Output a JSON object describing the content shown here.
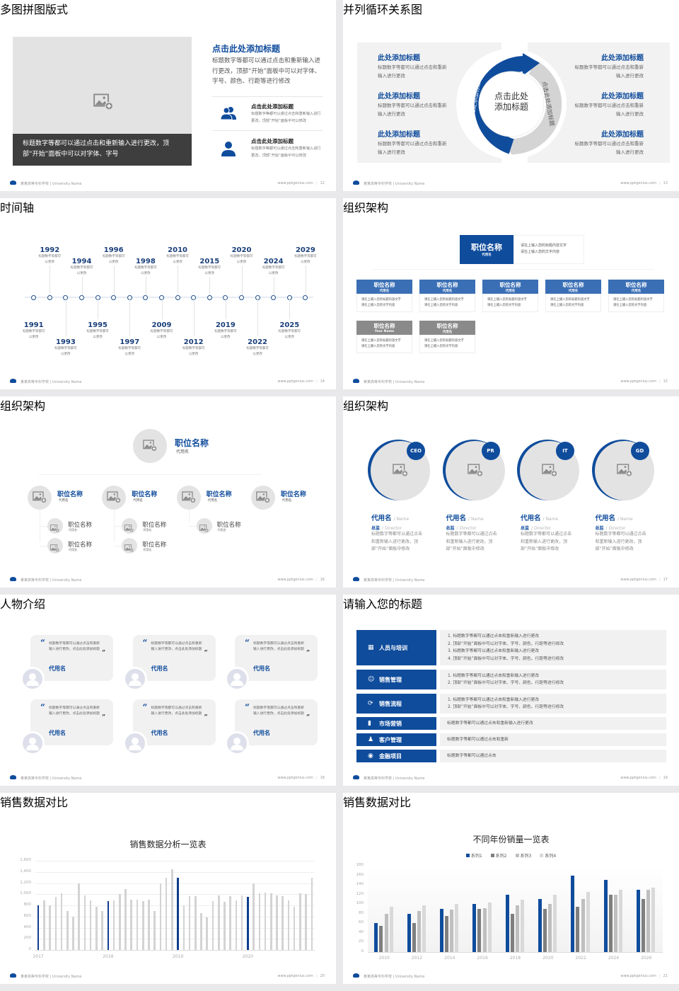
{
  "footer": {
    "school": "某某高等专科学校 | University Name",
    "url": "www.pptgenius.com"
  },
  "colors": {
    "brand_blue": "#0f4c9c",
    "gray": "#d0d0d0",
    "dark_caption": "#3e3e3e"
  },
  "slide12": {
    "title": "多图拼图版式",
    "page": "12",
    "photo_caption": "标题数字等都可以通过点击和重新输入进行更改，顶部“开始”面板中可以对字体、字号",
    "heading": "点击此处添加标题",
    "body": "标题数字等都可以通过点击和重新输入进行更改，顶部“开始”面板中可以对字体、字号、颜色、行距等进行修改",
    "items": [
      {
        "icon": "users-icon",
        "title": "点击此处添加标题",
        "text": "标题数字等都可以通过点击和重新输入进行更改，顶部“开始”面板中可以修改"
      },
      {
        "icon": "user-icon",
        "title": "点击此处添加标题",
        "text": "标题数字等都可以通过点击和重新输入进行更改，顶部“开始”面板中可以修改"
      }
    ]
  },
  "slide13": {
    "title": "并列循环关系图",
    "page": "13",
    "center_lines": [
      "点击此处",
      "添加标题"
    ],
    "arc_left": "点击此处添加标题",
    "arc_right": "点击此处添加标题",
    "items_left": [
      {
        "title": "此处添加标题",
        "text": "标题数字等都可以通过点击和重新输入进行更改"
      },
      {
        "title": "此处添加标题",
        "text": "标题数字等都可以通过点击和重新输入进行更改"
      },
      {
        "title": "此处添加标题",
        "text": "标题数字等都可以通过点击和重新输入进行更改"
      }
    ],
    "items_right": [
      {
        "title": "此处添加标题",
        "text": "标题数字等都可以通过点击和重新输入进行更改"
      },
      {
        "title": "此处添加标题",
        "text": "标题数字等都可以通过点击和重新输入进行更改"
      },
      {
        "title": "此处添加标题",
        "text": "标题数字等都可以通过点击和重新输入进行更改"
      }
    ]
  },
  "slide14": {
    "title": "时间轴",
    "page": "14",
    "events": [
      {
        "year": "1991",
        "text": "标题数字等都可以更改"
      },
      {
        "year": "1992",
        "text": "标题数字等都可以更改"
      },
      {
        "year": "1993",
        "text": "标题数字等都可以更改"
      },
      {
        "year": "1994",
        "text": "标题数字等都可以更改"
      },
      {
        "year": "1995",
        "text": "标题数字等都可以更改"
      },
      {
        "year": "1996",
        "text": "标题数字等都可以更改"
      },
      {
        "year": "1997",
        "text": "标题数字等都可以更改"
      },
      {
        "year": "1998",
        "text": "标题数字等都可以更改"
      },
      {
        "year": "2009",
        "text": "标题数字等都可以更改"
      },
      {
        "year": "2010",
        "text": "标题数字等都可以更改"
      },
      {
        "year": "2012",
        "text": "标题数字等都可以更改"
      },
      {
        "year": "2015",
        "text": "标题数字等都可以更改"
      },
      {
        "year": "2019",
        "text": "标题数字等都可以更改"
      },
      {
        "year": "2020",
        "text": "标题数字等都可以更改"
      },
      {
        "year": "2022",
        "text": "标题数字等都可以更改"
      },
      {
        "year": "2024",
        "text": "标题数字等都可以更改"
      },
      {
        "year": "2025",
        "text": "标题数字等都可以更改"
      },
      {
        "year": "2029",
        "text": "标题数字等都可以更改"
      }
    ]
  },
  "slide15": {
    "title": "组织架构",
    "page": "15",
    "top": {
      "name": "职位名称",
      "alias": "代用名",
      "desc": [
        "请在上输入您的标题内容文字",
        "请在上输入您的文字内容"
      ]
    },
    "row1": [
      {
        "name": "职位名称",
        "alias": "代用名",
        "desc": [
          "请在上输入您的标题内容文字",
          "请在上输入您的文字内容"
        ]
      },
      {
        "name": "职位名称",
        "alias": "代用名",
        "desc": [
          "请在上输入您的标题内容文字",
          "请在上输入您的文字内容"
        ]
      },
      {
        "name": "职位名称",
        "alias": "代用名",
        "desc": [
          "请在上输入您的标题内容文字",
          "请在上输入您的文字内容"
        ]
      },
      {
        "name": "职位名称",
        "alias": "代用名",
        "desc": [
          "请在上输入您的标题内容文字",
          "请在上输入您的文字内容"
        ]
      },
      {
        "name": "职位名称",
        "alias": "代用名",
        "desc": [
          "请在上输入您的标题内容文字",
          "请在上输入您的文字内容"
        ]
      }
    ],
    "row2": [
      {
        "name": "职位名称",
        "alias": "Your Name",
        "desc": [
          "请在上输入您的标题内容文字",
          "请在上输入您的文字内容"
        ]
      },
      {
        "name": "职位名称",
        "alias": "代用名",
        "desc": [
          "请在上输入您的标题内容文字",
          "请在上输入您的文字内容"
        ]
      }
    ]
  },
  "slide16": {
    "title": "组织架构",
    "page": "16",
    "top": {
      "name": "职位名称",
      "alias": "代用名"
    },
    "branches": [
      {
        "name": "职位名称",
        "alias": "代用名",
        "children": [
          {
            "name": "职位名称",
            "alias": "代用名"
          },
          {
            "name": "职位名称",
            "alias": "代用名"
          }
        ]
      },
      {
        "name": "职位名称",
        "alias": "代用名",
        "children": [
          {
            "name": "职位名称",
            "alias": "代用名"
          },
          {
            "name": "职位名称",
            "alias": "代用名"
          }
        ]
      },
      {
        "name": "职位名称",
        "alias": "代用名",
        "children": [
          {
            "name": "职位名称",
            "alias": "代用名"
          }
        ]
      },
      {
        "name": "职位名称",
        "alias": "代用名",
        "children": []
      }
    ]
  },
  "slide17": {
    "title": "组织架构",
    "page": "17",
    "people": [
      {
        "badge": "CEO",
        "name": "代用名",
        "name_en": "/ Name",
        "role": "总监",
        "role_en": "/ Director",
        "desc": "标题数字等都可以通过点击和重新输入进行更改，顶部“开始”面板中修改"
      },
      {
        "badge": "PR",
        "name": "代用名",
        "name_en": "/ Name",
        "role": "总监",
        "role_en": "/ Director",
        "desc": "标题数字等都可以通过点击和重新输入进行更改，顶部“开始”面板中修改"
      },
      {
        "badge": "IT",
        "name": "代用名",
        "name_en": "/ Name",
        "role": "总监",
        "role_en": "/ Director",
        "desc": "标题数字等都可以通过点击和重新输入进行更改，顶部“开始”面板中修改"
      },
      {
        "badge": "GD",
        "name": "代用名",
        "name_en": "/ Name",
        "role": "总监",
        "role_en": "/ Director",
        "desc": "标题数字等都可以通过点击和重新输入进行更改，顶部“开始”面板中修改"
      }
    ]
  },
  "slide18": {
    "title": "人物介绍",
    "page": "18",
    "quotes": [
      {
        "text": "标题数字等都可以通过点击和重新输入进行更改，点击此处添加标题",
        "name": "代用名"
      },
      {
        "text": "标题数字等都可以通过点击和重新输入进行更改，点击此处添加标题",
        "name": "代用名"
      },
      {
        "text": "标题数字等都可以通过点击和重新输入进行更改，点击此处添加标题",
        "name": "代用名"
      },
      {
        "text": "标题数字等都可以通过点击和重新输入进行更改，点击此处添加标题",
        "name": "代用名"
      },
      {
        "text": "标题数字等都可以通过点击和重新输入进行更改，点击此处添加标题",
        "name": "代用名"
      },
      {
        "text": "标题数字等都可以通过点击和重新输入进行更改，点击此处添加标题",
        "name": "代用名"
      }
    ]
  },
  "slide19": {
    "title": "请输入您的标题",
    "page": "19",
    "rows": [
      {
        "icon": "training-icon",
        "label": "人员与培训",
        "lines": [
          "1.  标题数字等都可以通过点击和重新输入进行更改",
          "2.  顶部“开始”面板中可以对字体、字号、颜色、行距等进行修改",
          "3.  标题数字等都可以通过点击和重新输入进行更改",
          "4.  顶部“开始”面板中可以对字体、字号、颜色、行距等进行修改"
        ]
      },
      {
        "icon": "sales-management-icon",
        "label": "销售管理",
        "lines": [
          "1.  标题数字等都可以通过点击和重新输入进行更改",
          "2.  顶部“开始”面板中可以对字体、字号、颜色、行距等进行修改"
        ]
      },
      {
        "icon": "cycle-icon",
        "label": "销售流程",
        "lines": [
          "1.  标题数字等都可以通过点击和重新输入进行更改",
          "2.  顶部“开始”面板中可以对字体、字号、颜色、行距等进行修改"
        ]
      },
      {
        "icon": "bar-chart-icon",
        "label": "市场营销",
        "lines": [
          "标题数字等都可以通过点击和重新输入进行更改"
        ]
      },
      {
        "icon": "customers-icon",
        "label": "客户管理",
        "lines": [
          "标题数字等都可以通过点击和重新"
        ]
      },
      {
        "icon": "finance-icon",
        "label": "金融项目",
        "lines": [
          "标题数字等都可以通过点击"
        ]
      }
    ]
  },
  "slide20": {
    "title": "销售数据对比",
    "page": "20"
  },
  "slide21": {
    "title": "销售数据对比",
    "page": "21"
  },
  "chart_data": [
    {
      "type": "bar",
      "title": "销售数据分析一览表",
      "xlabel": "",
      "ylabel": "",
      "ylim": [
        0,
        1600
      ],
      "yticks": [
        "0",
        "200",
        "400",
        "600",
        "800",
        "1,000",
        "1,200",
        "1,400",
        "1,600"
      ],
      "x_tick_labels": [
        "2017",
        "2018",
        "2019",
        "2020"
      ],
      "grid": true,
      "highlight_color": "#0f3c8c",
      "bar_color": "#d3d3d3",
      "highlighted_indices": [
        0,
        12,
        24,
        36
      ],
      "values": [
        800,
        890,
        800,
        950,
        1010,
        700,
        600,
        1200,
        980,
        890,
        780,
        700,
        880,
        890,
        1000,
        1090,
        900,
        900,
        880,
        900,
        700,
        1200,
        1300,
        1450,
        1300,
        800,
        960,
        970,
        660,
        580,
        870,
        980,
        860,
        960,
        890,
        980,
        950,
        1200,
        1010,
        1030,
        1020,
        980,
        970,
        890,
        780,
        1010,
        1000,
        1300
      ]
    },
    {
      "type": "bar",
      "title": "不同年份销量一览表",
      "xlabel": "",
      "ylabel": "",
      "ylim": [
        0,
        180
      ],
      "yticks": [
        "0",
        "20",
        "40",
        "60",
        "80",
        "100",
        "120",
        "140",
        "160",
        "180"
      ],
      "categories": [
        "2010",
        "2012",
        "2014",
        "2016",
        "2018",
        "2020",
        "2022",
        "2024",
        "2026"
      ],
      "legend": "top",
      "grid": false,
      "series": [
        {
          "name": "系列1",
          "color": "#0f4c9c",
          "values": [
            60,
            80,
            90,
            100,
            120,
            110,
            160,
            150,
            130
          ]
        },
        {
          "name": "系列2",
          "color": "#7f7f7f",
          "values": [
            55,
            60,
            75,
            90,
            80,
            90,
            95,
            120,
            110
          ]
        },
        {
          "name": "系列3",
          "color": "#bfbfbf",
          "values": [
            80,
            85,
            88,
            91,
            97,
            100,
            110,
            120,
            130
          ]
        },
        {
          "name": "系列4",
          "color": "#d9d9d9",
          "values": [
            95,
            98,
            101,
            104,
            109,
            120,
            126,
            130,
            134
          ]
        }
      ]
    }
  ]
}
